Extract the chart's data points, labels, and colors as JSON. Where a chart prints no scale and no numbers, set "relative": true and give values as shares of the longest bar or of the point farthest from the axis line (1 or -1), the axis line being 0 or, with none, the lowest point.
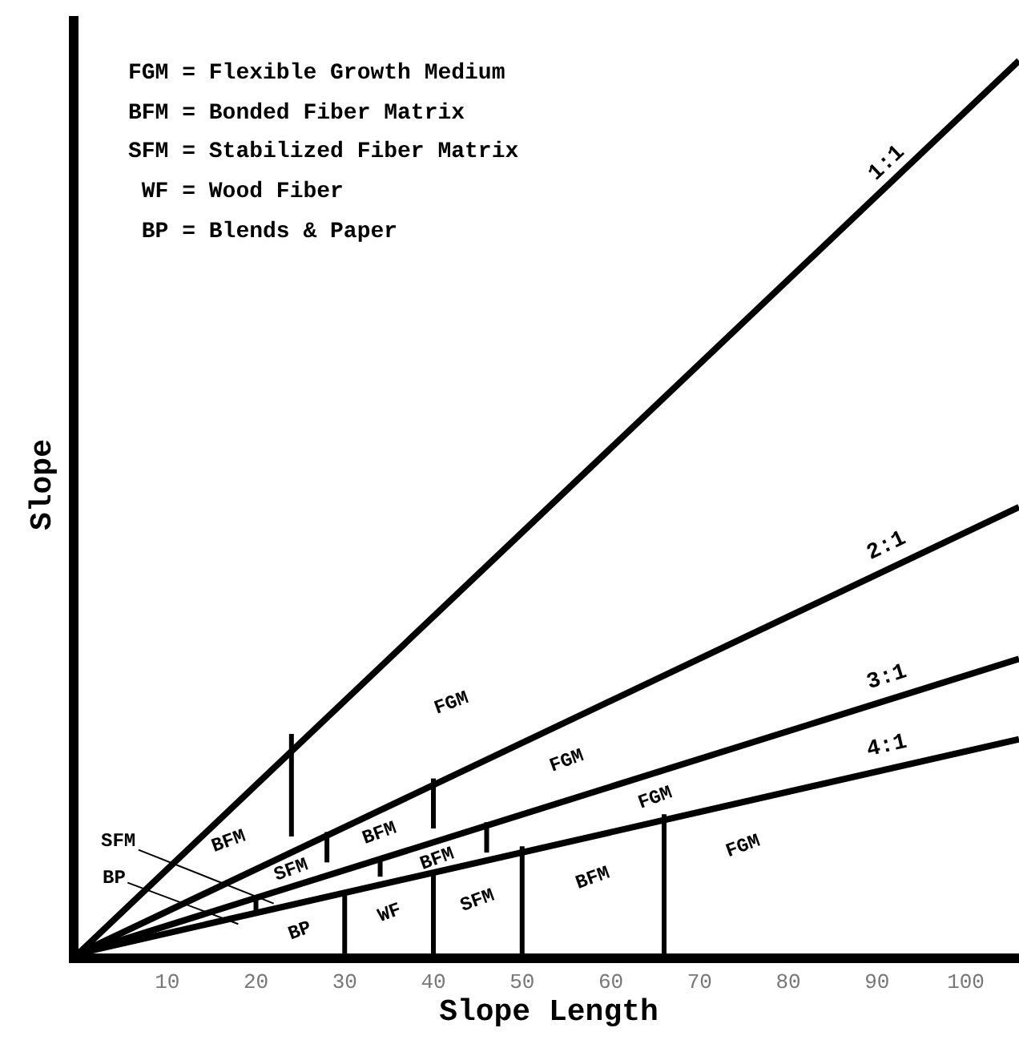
{
  "chart_data": {
    "type": "line",
    "relative": true,
    "xlabel": "Slope Length",
    "ylabel": "Slope",
    "xlim": [
      0,
      106
    ],
    "xticks": [
      10,
      20,
      30,
      40,
      50,
      60,
      70,
      80,
      90,
      100
    ],
    "legend": false,
    "marker": "none",
    "line_style": "solid",
    "series": [
      {
        "name": "1:1",
        "color": "#000000",
        "x": [
          0,
          106
        ],
        "values": [
          0,
          1
        ]
      },
      {
        "name": "2:1",
        "color": "#000000",
        "x": [
          0,
          106
        ],
        "values": [
          0,
          0.5
        ]
      },
      {
        "name": "3:1",
        "color": "#000000",
        "x": [
          0,
          106
        ],
        "values": [
          0,
          0.33
        ]
      },
      {
        "name": "4:1",
        "color": "#000000",
        "x": [
          0,
          106
        ],
        "values": [
          0,
          0.24
        ]
      },
      {
        "color": "#000000",
        "x": [
          24,
          24
        ],
        "values": [
          0.246,
          0.131
        ]
      },
      {
        "color": "#000000",
        "x": [
          28,
          28
        ],
        "values": [
          0.136,
          0.102
        ]
      },
      {
        "color": "#000000",
        "x": [
          40,
          40
        ],
        "values": [
          0.196,
          0.14
        ]
      },
      {
        "color": "#000000",
        "x": [
          34,
          34
        ],
        "values": [
          0.108,
          0.086
        ]
      },
      {
        "color": "#000000",
        "x": [
          46,
          46
        ],
        "values": [
          0.147,
          0.113
        ]
      },
      {
        "color": "#000000",
        "x": [
          20,
          20
        ],
        "values": [
          0.062,
          0.045
        ]
      },
      {
        "color": "#000000",
        "x": [
          30,
          30
        ],
        "values": [
          0.068,
          0
        ]
      },
      {
        "color": "#000000",
        "x": [
          40,
          40
        ],
        "values": [
          0.093,
          0
        ]
      },
      {
        "color": "#000000",
        "x": [
          50,
          50
        ],
        "values": [
          0.12,
          0
        ]
      },
      {
        "color": "#000000",
        "x": [
          66,
          66
        ],
        "values": [
          0.156,
          0
        ]
      }
    ],
    "annotations": [
      "FGM = Flexible Growth Medium",
      "BFM = Bonded Fiber Matrix",
      "SFM = Stabilized Fiber Matrix",
      " WF = Wood Fiber",
      " BP = Blends & Paper",
      "FGM",
      "FGM",
      "FGM",
      "FGM",
      "BFM",
      "BFM",
      "BFM",
      "BFM",
      "SFM",
      "SFM",
      "BP",
      "WF",
      "SFM",
      "BP"
    ]
  }
}
